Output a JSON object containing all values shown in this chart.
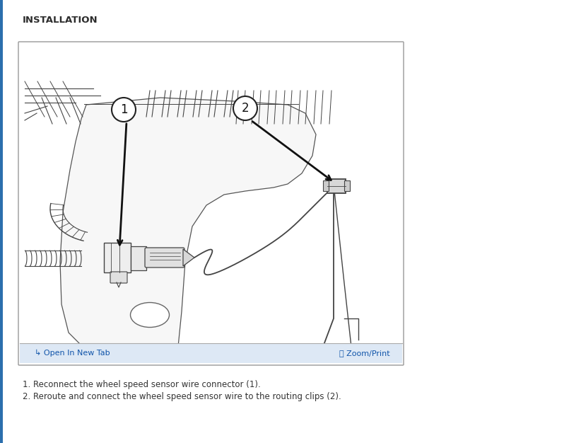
{
  "title": "INSTALLATION",
  "title_fontsize": 9.5,
  "title_bold": true,
  "title_color": "#2d2d2d",
  "page_bg": "#ffffff",
  "border_color": "#aaaaaa",
  "diagram_bg": "#ffffff",
  "text_line1": "1. Reconnect the wheel speed sensor wire connector (1).",
  "text_line2": "2. Reroute and connect the wheel speed sensor wire to the routing clips (2).",
  "text_fontsize": 8.5,
  "text_color": "#333333",
  "label1_text": "1",
  "label2_text": "2",
  "label_fontsize": 11,
  "arrow_color": "#111111",
  "footer_link1": "Open In New Tab",
  "footer_link2": "Zoom/Print",
  "footer_color": "#1155aa",
  "footer_fontsize": 8,
  "left_accent_color": "#2c6fad",
  "line_color": "#444444",
  "line_lw": 1.0
}
